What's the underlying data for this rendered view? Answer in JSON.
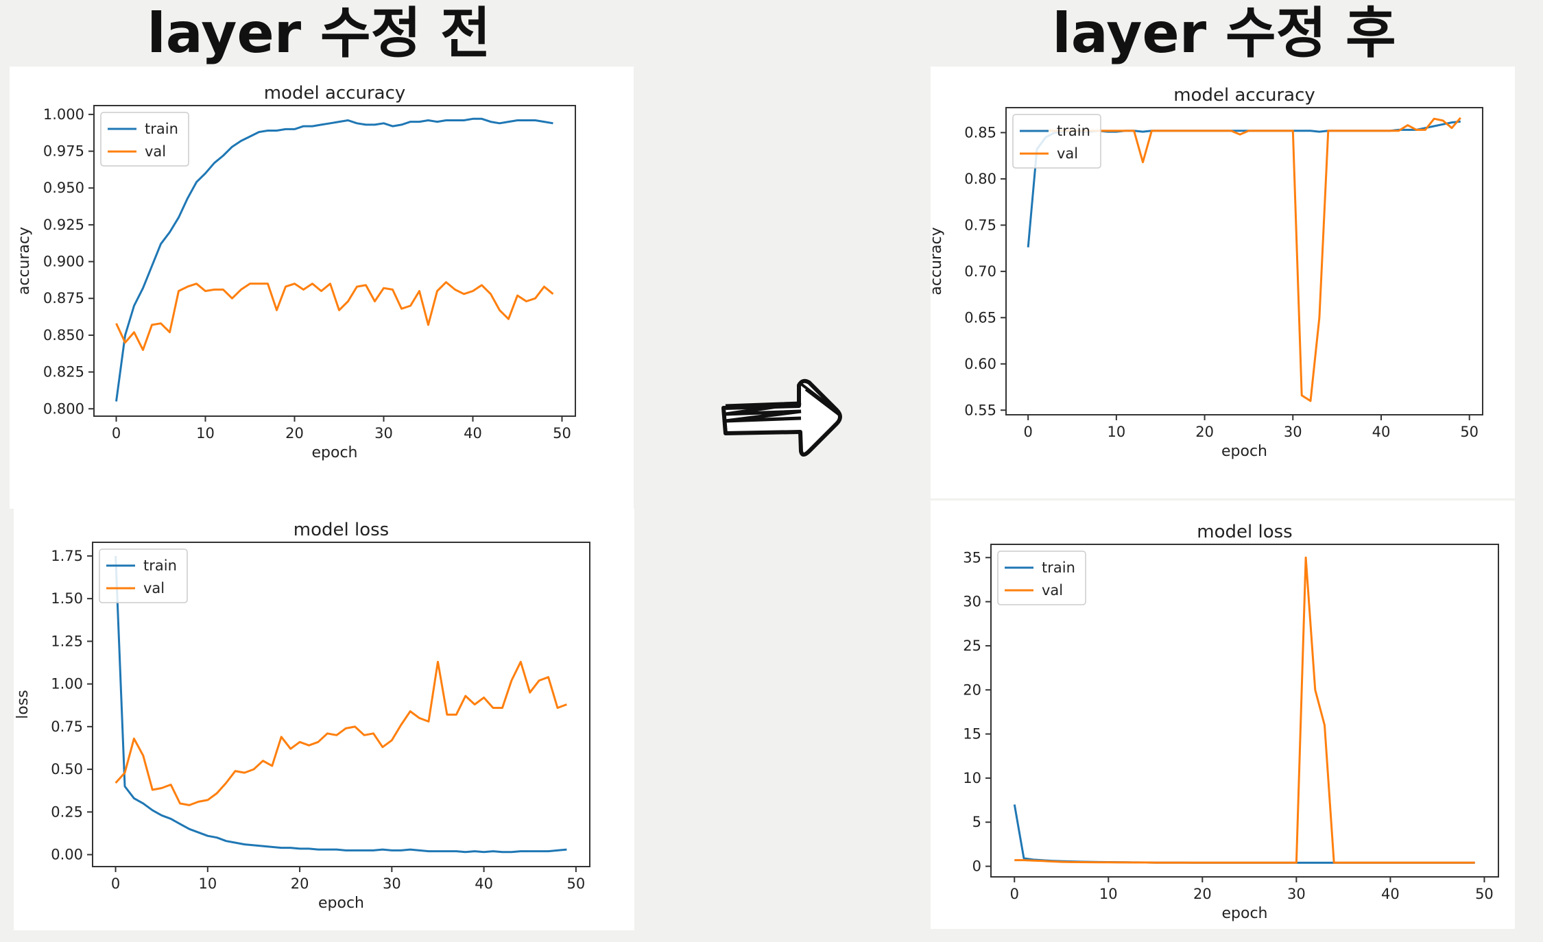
{
  "headings": {
    "before": "layer 수정 전",
    "after": "layer 수정 후"
  },
  "icons": {
    "arrow": "right-arrow-icon"
  },
  "colors": {
    "train": "#1f77b4",
    "val": "#ff7f0e"
  },
  "chart_data": [
    {
      "id": "before-accuracy",
      "type": "line",
      "title": "model accuracy",
      "xlabel": "epoch",
      "ylabel": "accuracy",
      "xlim": [
        -2.5,
        51.5
      ],
      "ylim": [
        0.795,
        1.006
      ],
      "xticks": [
        0,
        10,
        20,
        30,
        40,
        50
      ],
      "yticks": [
        0.8,
        0.825,
        0.85,
        0.875,
        0.9,
        0.925,
        0.95,
        0.975,
        1.0
      ],
      "ytick_labels": [
        "0.800",
        "0.825",
        "0.850",
        "0.875",
        "0.900",
        "0.925",
        "0.950",
        "0.975",
        "1.000"
      ],
      "legend": "upper-left",
      "grid": false,
      "series": [
        {
          "name": "train",
          "values": [
            0.805,
            0.85,
            0.87,
            0.882,
            0.897,
            0.912,
            0.92,
            0.93,
            0.943,
            0.954,
            0.96,
            0.967,
            0.972,
            0.978,
            0.982,
            0.985,
            0.988,
            0.989,
            0.989,
            0.99,
            0.99,
            0.992,
            0.992,
            0.993,
            0.994,
            0.995,
            0.996,
            0.994,
            0.993,
            0.993,
            0.994,
            0.992,
            0.993,
            0.995,
            0.995,
            0.996,
            0.995,
            0.996,
            0.996,
            0.996,
            0.997,
            0.997,
            0.995,
            0.994,
            0.995,
            0.996,
            0.996,
            0.996,
            0.995,
            0.994
          ]
        },
        {
          "name": "val",
          "values": [
            0.858,
            0.845,
            0.852,
            0.84,
            0.857,
            0.858,
            0.852,
            0.88,
            0.883,
            0.885,
            0.88,
            0.881,
            0.881,
            0.875,
            0.881,
            0.885,
            0.885,
            0.885,
            0.867,
            0.883,
            0.885,
            0.881,
            0.885,
            0.88,
            0.885,
            0.867,
            0.873,
            0.883,
            0.884,
            0.873,
            0.882,
            0.881,
            0.868,
            0.87,
            0.88,
            0.857,
            0.88,
            0.886,
            0.881,
            0.878,
            0.88,
            0.884,
            0.878,
            0.867,
            0.861,
            0.877,
            0.873,
            0.875,
            0.883,
            0.878
          ]
        }
      ]
    },
    {
      "id": "before-loss",
      "type": "line",
      "title": "model loss",
      "xlabel": "epoch",
      "ylabel": "loss",
      "xlim": [
        -2.5,
        51.5
      ],
      "ylim": [
        -0.07,
        1.83
      ],
      "xticks": [
        0,
        10,
        20,
        30,
        40,
        50
      ],
      "yticks": [
        0,
        0.25,
        0.5,
        0.75,
        1.0,
        1.25,
        1.5,
        1.75
      ],
      "ytick_labels": [
        "0.00",
        "0.25",
        "0.50",
        "0.75",
        "1.00",
        "1.25",
        "1.50",
        "1.75"
      ],
      "legend": "upper-left",
      "grid": false,
      "series": [
        {
          "name": "train",
          "values": [
            1.75,
            0.4,
            0.33,
            0.3,
            0.26,
            0.23,
            0.21,
            0.18,
            0.15,
            0.13,
            0.11,
            0.1,
            0.08,
            0.07,
            0.06,
            0.055,
            0.05,
            0.045,
            0.04,
            0.04,
            0.035,
            0.035,
            0.03,
            0.03,
            0.03,
            0.025,
            0.025,
            0.025,
            0.025,
            0.03,
            0.025,
            0.025,
            0.03,
            0.025,
            0.02,
            0.02,
            0.02,
            0.02,
            0.015,
            0.02,
            0.015,
            0.02,
            0.015,
            0.015,
            0.02,
            0.02,
            0.02,
            0.02,
            0.025,
            0.03
          ]
        },
        {
          "name": "val",
          "values": [
            0.42,
            0.48,
            0.68,
            0.58,
            0.38,
            0.39,
            0.41,
            0.3,
            0.29,
            0.31,
            0.32,
            0.36,
            0.42,
            0.49,
            0.48,
            0.5,
            0.55,
            0.52,
            0.69,
            0.62,
            0.66,
            0.64,
            0.66,
            0.71,
            0.7,
            0.74,
            0.75,
            0.7,
            0.71,
            0.63,
            0.67,
            0.76,
            0.84,
            0.8,
            0.78,
            1.13,
            0.82,
            0.82,
            0.93,
            0.88,
            0.92,
            0.86,
            0.86,
            1.02,
            1.13,
            0.95,
            1.02,
            1.04,
            0.86,
            0.88
          ]
        }
      ]
    },
    {
      "id": "after-accuracy",
      "type": "line",
      "title": "model accuracy",
      "xlabel": "epoch",
      "ylabel": "accuracy",
      "xlim": [
        -2.5,
        51.5
      ],
      "ylim": [
        0.545,
        0.877
      ],
      "xticks": [
        0,
        10,
        20,
        30,
        40,
        50
      ],
      "yticks": [
        0.55,
        0.6,
        0.65,
        0.7,
        0.75,
        0.8,
        0.85
      ],
      "ytick_labels": [
        "0.55",
        "0.60",
        "0.65",
        "0.70",
        "0.75",
        "0.80",
        "0.85"
      ],
      "legend": "upper-left",
      "grid": false,
      "series": [
        {
          "name": "train",
          "values": [
            0.726,
            0.832,
            0.845,
            0.85,
            0.851,
            0.852,
            0.851,
            0.851,
            0.852,
            0.851,
            0.851,
            0.852,
            0.852,
            0.851,
            0.852,
            0.852,
            0.852,
            0.852,
            0.852,
            0.852,
            0.852,
            0.852,
            0.852,
            0.852,
            0.852,
            0.852,
            0.852,
            0.852,
            0.852,
            0.852,
            0.852,
            0.852,
            0.852,
            0.851,
            0.852,
            0.852,
            0.852,
            0.852,
            0.852,
            0.852,
            0.852,
            0.852,
            0.853,
            0.853,
            0.853,
            0.855,
            0.857,
            0.859,
            0.861,
            0.862
          ]
        },
        {
          "name": "val",
          "values": [
            0.852,
            0.852,
            0.852,
            0.852,
            0.852,
            0.852,
            0.852,
            0.852,
            0.852,
            0.852,
            0.852,
            0.852,
            0.852,
            0.818,
            0.852,
            0.852,
            0.852,
            0.852,
            0.852,
            0.852,
            0.852,
            0.852,
            0.852,
            0.852,
            0.848,
            0.852,
            0.852,
            0.852,
            0.852,
            0.852,
            0.852,
            0.566,
            0.56,
            0.65,
            0.852,
            0.852,
            0.852,
            0.852,
            0.852,
            0.852,
            0.852,
            0.852,
            0.852,
            0.858,
            0.853,
            0.853,
            0.865,
            0.863,
            0.855,
            0.866
          ]
        }
      ]
    },
    {
      "id": "after-loss",
      "type": "line",
      "title": "model loss",
      "xlabel": "epoch",
      "ylabel": "loss",
      "xlim": [
        -2.5,
        51.5
      ],
      "ylim": [
        -1.2,
        36.5
      ],
      "xticks": [
        0,
        10,
        20,
        30,
        40,
        50
      ],
      "yticks": [
        0,
        5,
        10,
        15,
        20,
        25,
        30,
        35
      ],
      "ytick_labels": [
        "0",
        "5",
        "10",
        "15",
        "20",
        "25",
        "30",
        "35"
      ],
      "legend": "upper-left",
      "grid": false,
      "series": [
        {
          "name": "train",
          "values": [
            7.0,
            0.9,
            0.75,
            0.68,
            0.62,
            0.58,
            0.55,
            0.52,
            0.5,
            0.48,
            0.47,
            0.46,
            0.45,
            0.44,
            0.43,
            0.42,
            0.42,
            0.41,
            0.41,
            0.4,
            0.4,
            0.4,
            0.4,
            0.4,
            0.4,
            0.4,
            0.4,
            0.4,
            0.4,
            0.4,
            0.4,
            0.4,
            0.4,
            0.4,
            0.4,
            0.4,
            0.4,
            0.4,
            0.4,
            0.4,
            0.4,
            0.4,
            0.4,
            0.4,
            0.4,
            0.4,
            0.4,
            0.4,
            0.4,
            0.4
          ]
        },
        {
          "name": "val",
          "values": [
            0.7,
            0.7,
            0.65,
            0.6,
            0.55,
            0.5,
            0.48,
            0.47,
            0.46,
            0.45,
            0.45,
            0.44,
            0.44,
            0.43,
            0.43,
            0.42,
            0.42,
            0.42,
            0.42,
            0.42,
            0.42,
            0.42,
            0.42,
            0.42,
            0.42,
            0.42,
            0.42,
            0.42,
            0.42,
            0.42,
            0.42,
            35.0,
            20.0,
            16.0,
            0.42,
            0.42,
            0.42,
            0.42,
            0.42,
            0.42,
            0.42,
            0.42,
            0.42,
            0.42,
            0.42,
            0.42,
            0.42,
            0.42,
            0.42,
            0.42
          ]
        }
      ]
    }
  ]
}
